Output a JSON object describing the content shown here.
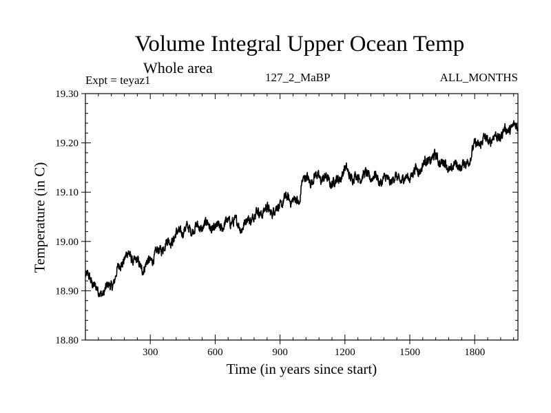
{
  "header": {
    "title": "Volume Integral Upper Ocean Temp",
    "subtitle": "Whole area",
    "experiment": "Expt = teyaz1",
    "run_id": "127_2_MaBP",
    "months": "ALL_MONTHS"
  },
  "chart_data": {
    "type": "line",
    "title": "Volume Integral Upper Ocean Temp",
    "subtitle": "Whole area",
    "xlabel": "Time (in years since start)",
    "ylabel": "Temperature (in C)",
    "xlim": [
      0,
      2000
    ],
    "ylim": [
      18.8,
      19.3
    ],
    "x_ticks": [
      300,
      600,
      900,
      1200,
      1500,
      1800
    ],
    "x_tick_labels": [
      "300",
      "600",
      "900",
      "1200",
      "1500",
      "1800"
    ],
    "y_ticks": [
      18.8,
      18.9,
      19.0,
      19.1,
      19.2,
      19.3
    ],
    "y_tick_labels": [
      "18.80",
      "18.90",
      "19.00",
      "19.10",
      "19.20",
      "19.30"
    ],
    "grid": false,
    "series": [
      {
        "name": "teyaz1",
        "x": [
          0,
          20,
          40,
          60,
          80,
          100,
          130,
          160,
          200,
          240,
          270,
          300,
          330,
          360,
          400,
          440,
          480,
          520,
          560,
          600,
          640,
          680,
          720,
          760,
          800,
          840,
          880,
          920,
          960,
          990,
          1000,
          1040,
          1080,
          1120,
          1160,
          1200,
          1240,
          1280,
          1320,
          1360,
          1400,
          1440,
          1480,
          1520,
          1560,
          1600,
          1640,
          1680,
          1720,
          1760,
          1800,
          1840,
          1880,
          1920,
          1960,
          2000
        ],
        "values": [
          18.93,
          18.92,
          18.91,
          18.89,
          18.9,
          18.91,
          18.92,
          18.95,
          18.97,
          18.96,
          18.95,
          18.96,
          18.97,
          18.99,
          19.01,
          19.02,
          19.02,
          19.03,
          19.04,
          19.02,
          19.03,
          19.05,
          19.03,
          19.04,
          19.06,
          19.07,
          19.06,
          19.08,
          19.09,
          19.08,
          19.13,
          19.12,
          19.13,
          19.13,
          19.12,
          19.14,
          19.13,
          19.14,
          19.13,
          19.12,
          19.13,
          19.13,
          19.12,
          19.14,
          19.16,
          19.17,
          19.16,
          19.15,
          19.16,
          19.15,
          19.19,
          19.21,
          19.21,
          19.21,
          19.23,
          19.24
        ]
      }
    ]
  }
}
